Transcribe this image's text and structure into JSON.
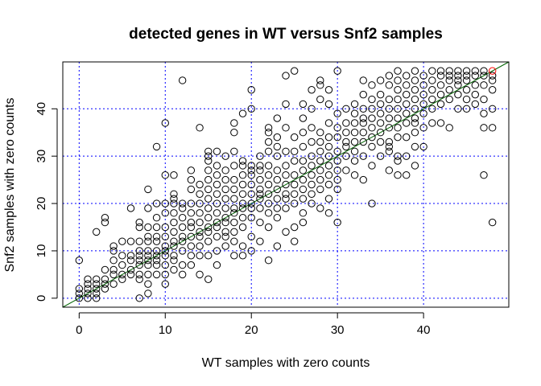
{
  "chart_data": {
    "type": "scatter",
    "title": "detected genes in WT versus Snf2 samples",
    "xlabel": "WT samples with zero counts",
    "ylabel": "Snf2 samples with zero counts",
    "xlim": [
      -1.9,
      49.9
    ],
    "ylim": [
      -1.9,
      49.9
    ],
    "xticks": [
      0,
      10,
      20,
      30,
      40
    ],
    "yticks": [
      0,
      10,
      20,
      30,
      40
    ],
    "grid": {
      "x": [
        0,
        10,
        20,
        30,
        40
      ],
      "y": [
        0,
        10,
        20,
        30,
        40
      ],
      "style": "dotted",
      "color": "#0000ff"
    },
    "reference_line": {
      "slope": 1,
      "intercept": 0,
      "color": "#006400"
    },
    "highlight_point": {
      "x": 48,
      "y": 48,
      "color": "#ff0000"
    },
    "points": [
      [
        0,
        0
      ],
      [
        0,
        1
      ],
      [
        0,
        2
      ],
      [
        0,
        8
      ],
      [
        1,
        0
      ],
      [
        1,
        1
      ],
      [
        1,
        2
      ],
      [
        1,
        3
      ],
      [
        1,
        4
      ],
      [
        2,
        0
      ],
      [
        2,
        1
      ],
      [
        2,
        2
      ],
      [
        2,
        3
      ],
      [
        2,
        4
      ],
      [
        2,
        14
      ],
      [
        3,
        2
      ],
      [
        3,
        3
      ],
      [
        3,
        4
      ],
      [
        3,
        6
      ],
      [
        3,
        16
      ],
      [
        3,
        17
      ],
      [
        4,
        3
      ],
      [
        4,
        5
      ],
      [
        4,
        6
      ],
      [
        4,
        8
      ],
      [
        4,
        10
      ],
      [
        4,
        11
      ],
      [
        5,
        4
      ],
      [
        5,
        5
      ],
      [
        5,
        7
      ],
      [
        5,
        9
      ],
      [
        5,
        12
      ],
      [
        6,
        5
      ],
      [
        6,
        6
      ],
      [
        6,
        8
      ],
      [
        6,
        9
      ],
      [
        6,
        12
      ],
      [
        6,
        19
      ],
      [
        7,
        0
      ],
      [
        7,
        4
      ],
      [
        7,
        5
      ],
      [
        7,
        7
      ],
      [
        7,
        8
      ],
      [
        7,
        9
      ],
      [
        7,
        10
      ],
      [
        7,
        12
      ],
      [
        7,
        15
      ],
      [
        7,
        16
      ],
      [
        8,
        1
      ],
      [
        8,
        3
      ],
      [
        8,
        5
      ],
      [
        8,
        7
      ],
      [
        8,
        8
      ],
      [
        8,
        9
      ],
      [
        8,
        10
      ],
      [
        8,
        12
      ],
      [
        8,
        13
      ],
      [
        8,
        15
      ],
      [
        8,
        19
      ],
      [
        8,
        23
      ],
      [
        9,
        5
      ],
      [
        9,
        7
      ],
      [
        9,
        8
      ],
      [
        9,
        9
      ],
      [
        9,
        10
      ],
      [
        9,
        12
      ],
      [
        9,
        13
      ],
      [
        9,
        15
      ],
      [
        9,
        17
      ],
      [
        9,
        20
      ],
      [
        9,
        32
      ],
      [
        10,
        3
      ],
      [
        10,
        5
      ],
      [
        10,
        7
      ],
      [
        10,
        9
      ],
      [
        10,
        10
      ],
      [
        10,
        11
      ],
      [
        10,
        13
      ],
      [
        10,
        15
      ],
      [
        10,
        18
      ],
      [
        10,
        20
      ],
      [
        10,
        26
      ],
      [
        10,
        37
      ],
      [
        11,
        6
      ],
      [
        11,
        8
      ],
      [
        11,
        9
      ],
      [
        11,
        11
      ],
      [
        11,
        12
      ],
      [
        11,
        14
      ],
      [
        11,
        16
      ],
      [
        11,
        18
      ],
      [
        11,
        20
      ],
      [
        11,
        21
      ],
      [
        11,
        22
      ],
      [
        11,
        26
      ],
      [
        12,
        5
      ],
      [
        12,
        7
      ],
      [
        12,
        10
      ],
      [
        12,
        12
      ],
      [
        12,
        13
      ],
      [
        12,
        15
      ],
      [
        12,
        17
      ],
      [
        12,
        19
      ],
      [
        12,
        20
      ],
      [
        12,
        46
      ],
      [
        13,
        7
      ],
      [
        13,
        9
      ],
      [
        13,
        11
      ],
      [
        13,
        13
      ],
      [
        13,
        15
      ],
      [
        13,
        16
      ],
      [
        13,
        18
      ],
      [
        13,
        20
      ],
      [
        13,
        23
      ],
      [
        13,
        25
      ],
      [
        13,
        27
      ],
      [
        14,
        5
      ],
      [
        14,
        9
      ],
      [
        14,
        11
      ],
      [
        14,
        13
      ],
      [
        14,
        14
      ],
      [
        14,
        16
      ],
      [
        14,
        18
      ],
      [
        14,
        20
      ],
      [
        14,
        22
      ],
      [
        14,
        24
      ],
      [
        14,
        36
      ],
      [
        15,
        4
      ],
      [
        15,
        9
      ],
      [
        15,
        12
      ],
      [
        15,
        14
      ],
      [
        15,
        15
      ],
      [
        15,
        17
      ],
      [
        15,
        19
      ],
      [
        15,
        21
      ],
      [
        15,
        23
      ],
      [
        15,
        25
      ],
      [
        15,
        27
      ],
      [
        15,
        29
      ],
      [
        15,
        30
      ],
      [
        15,
        31
      ],
      [
        16,
        7
      ],
      [
        16,
        10
      ],
      [
        16,
        13
      ],
      [
        16,
        15
      ],
      [
        16,
        16
      ],
      [
        16,
        18
      ],
      [
        16,
        20
      ],
      [
        16,
        22
      ],
      [
        16,
        24
      ],
      [
        16,
        26
      ],
      [
        16,
        28
      ],
      [
        16,
        31
      ],
      [
        17,
        11
      ],
      [
        17,
        13
      ],
      [
        17,
        14
      ],
      [
        17,
        16
      ],
      [
        17,
        17
      ],
      [
        17,
        19
      ],
      [
        17,
        21
      ],
      [
        17,
        23
      ],
      [
        17,
        25
      ],
      [
        17,
        27
      ],
      [
        17,
        30
      ],
      [
        18,
        9
      ],
      [
        18,
        12
      ],
      [
        18,
        14
      ],
      [
        18,
        16
      ],
      [
        18,
        18
      ],
      [
        18,
        19
      ],
      [
        18,
        21
      ],
      [
        18,
        23
      ],
      [
        18,
        25
      ],
      [
        18,
        28
      ],
      [
        18,
        31
      ],
      [
        18,
        35
      ],
      [
        18,
        37
      ],
      [
        19,
        9
      ],
      [
        19,
        11
      ],
      [
        19,
        15
      ],
      [
        19,
        17
      ],
      [
        19,
        19
      ],
      [
        19,
        20
      ],
      [
        19,
        22
      ],
      [
        19,
        24
      ],
      [
        19,
        26
      ],
      [
        19,
        28
      ],
      [
        19,
        29
      ],
      [
        19,
        39
      ],
      [
        20,
        10
      ],
      [
        20,
        13
      ],
      [
        20,
        17
      ],
      [
        20,
        19
      ],
      [
        20,
        20
      ],
      [
        20,
        22
      ],
      [
        20,
        24
      ],
      [
        20,
        26
      ],
      [
        20,
        27
      ],
      [
        20,
        28
      ],
      [
        20,
        40
      ],
      [
        20,
        44
      ],
      [
        21,
        12
      ],
      [
        21,
        16
      ],
      [
        21,
        19
      ],
      [
        21,
        21
      ],
      [
        21,
        22
      ],
      [
        21,
        23
      ],
      [
        21,
        25
      ],
      [
        21,
        27
      ],
      [
        21,
        28
      ],
      [
        21,
        30
      ],
      [
        22,
        8
      ],
      [
        22,
        15
      ],
      [
        22,
        18
      ],
      [
        22,
        20
      ],
      [
        22,
        22
      ],
      [
        22,
        24
      ],
      [
        22,
        26
      ],
      [
        22,
        28
      ],
      [
        22,
        31
      ],
      [
        22,
        33
      ],
      [
        22,
        35
      ],
      [
        22,
        36
      ],
      [
        23,
        11
      ],
      [
        23,
        17
      ],
      [
        23,
        19
      ],
      [
        23,
        21
      ],
      [
        23,
        23
      ],
      [
        23,
        25
      ],
      [
        23,
        27
      ],
      [
        23,
        30
      ],
      [
        23,
        32
      ],
      [
        23,
        34
      ],
      [
        23,
        38
      ],
      [
        24,
        14
      ],
      [
        24,
        19
      ],
      [
        24,
        21
      ],
      [
        24,
        22
      ],
      [
        24,
        24
      ],
      [
        24,
        26
      ],
      [
        24,
        28
      ],
      [
        24,
        31
      ],
      [
        24,
        36
      ],
      [
        24,
        41
      ],
      [
        24,
        47
      ],
      [
        25,
        12
      ],
      [
        25,
        15
      ],
      [
        25,
        20
      ],
      [
        25,
        22
      ],
      [
        25,
        24
      ],
      [
        25,
        26
      ],
      [
        25,
        29
      ],
      [
        25,
        31
      ],
      [
        25,
        34
      ],
      [
        25,
        48
      ],
      [
        26,
        16
      ],
      [
        26,
        18
      ],
      [
        26,
        21
      ],
      [
        26,
        23
      ],
      [
        26,
        25
      ],
      [
        26,
        27
      ],
      [
        26,
        29
      ],
      [
        26,
        32
      ],
      [
        26,
        35
      ],
      [
        26,
        38
      ],
      [
        26,
        41
      ],
      [
        27,
        20
      ],
      [
        27,
        22
      ],
      [
        27,
        24
      ],
      [
        27,
        26
      ],
      [
        27,
        28
      ],
      [
        27,
        30
      ],
      [
        27,
        33
      ],
      [
        27,
        36
      ],
      [
        27,
        40
      ],
      [
        27,
        44
      ],
      [
        28,
        19
      ],
      [
        28,
        23
      ],
      [
        28,
        25
      ],
      [
        28,
        27
      ],
      [
        28,
        29
      ],
      [
        28,
        31
      ],
      [
        28,
        33
      ],
      [
        28,
        35
      ],
      [
        28,
        42
      ],
      [
        28,
        45
      ],
      [
        28,
        46
      ],
      [
        29,
        18
      ],
      [
        29,
        21
      ],
      [
        29,
        24
      ],
      [
        29,
        26
      ],
      [
        29,
        28
      ],
      [
        29,
        30
      ],
      [
        29,
        32
      ],
      [
        29,
        34
      ],
      [
        29,
        37
      ],
      [
        29,
        41
      ],
      [
        29,
        44
      ],
      [
        30,
        16
      ],
      [
        30,
        23
      ],
      [
        30,
        25
      ],
      [
        30,
        27
      ],
      [
        30,
        29
      ],
      [
        30,
        31
      ],
      [
        30,
        34
      ],
      [
        30,
        36
      ],
      [
        30,
        39
      ],
      [
        30,
        48
      ],
      [
        31,
        27
      ],
      [
        31,
        30
      ],
      [
        31,
        32
      ],
      [
        31,
        33
      ],
      [
        31,
        35
      ],
      [
        31,
        37
      ],
      [
        31,
        40
      ],
      [
        32,
        26
      ],
      [
        32,
        29
      ],
      [
        32,
        31
      ],
      [
        32,
        33
      ],
      [
        32,
        35
      ],
      [
        32,
        37
      ],
      [
        32,
        39
      ],
      [
        32,
        41
      ],
      [
        33,
        25
      ],
      [
        33,
        30
      ],
      [
        33,
        33
      ],
      [
        33,
        35
      ],
      [
        33,
        37
      ],
      [
        33,
        38
      ],
      [
        33,
        40
      ],
      [
        33,
        43
      ],
      [
        33,
        46
      ],
      [
        34,
        20
      ],
      [
        34,
        28
      ],
      [
        34,
        32
      ],
      [
        34,
        34
      ],
      [
        34,
        36
      ],
      [
        34,
        38
      ],
      [
        34,
        40
      ],
      [
        34,
        42
      ],
      [
        34,
        45
      ],
      [
        35,
        30
      ],
      [
        35,
        33
      ],
      [
        35,
        35
      ],
      [
        35,
        37
      ],
      [
        35,
        39
      ],
      [
        35,
        41
      ],
      [
        35,
        43
      ],
      [
        35,
        46
      ],
      [
        36,
        27
      ],
      [
        36,
        31
      ],
      [
        36,
        32
      ],
      [
        36,
        33
      ],
      [
        36,
        36
      ],
      [
        36,
        38
      ],
      [
        36,
        40
      ],
      [
        36,
        42
      ],
      [
        36,
        45
      ],
      [
        36,
        47
      ],
      [
        37,
        26
      ],
      [
        37,
        29
      ],
      [
        37,
        30
      ],
      [
        37,
        34
      ],
      [
        37,
        36
      ],
      [
        37,
        38
      ],
      [
        37,
        40
      ],
      [
        37,
        42
      ],
      [
        37,
        44
      ],
      [
        37,
        46
      ],
      [
        37,
        48
      ],
      [
        38,
        26
      ],
      [
        38,
        30
      ],
      [
        38,
        34
      ],
      [
        38,
        37
      ],
      [
        38,
        39
      ],
      [
        38,
        41
      ],
      [
        38,
        43
      ],
      [
        38,
        45
      ],
      [
        38,
        47
      ],
      [
        39,
        28
      ],
      [
        39,
        32
      ],
      [
        39,
        35
      ],
      [
        39,
        37
      ],
      [
        39,
        38
      ],
      [
        39,
        40
      ],
      [
        39,
        42
      ],
      [
        39,
        44
      ],
      [
        39,
        46
      ],
      [
        39,
        48
      ],
      [
        40,
        32
      ],
      [
        40,
        36
      ],
      [
        40,
        39
      ],
      [
        40,
        41
      ],
      [
        40,
        43
      ],
      [
        40,
        45
      ],
      [
        40,
        47
      ],
      [
        41,
        37
      ],
      [
        41,
        40
      ],
      [
        41,
        42
      ],
      [
        41,
        44
      ],
      [
        41,
        46
      ],
      [
        41,
        48
      ],
      [
        42,
        37
      ],
      [
        42,
        41
      ],
      [
        42,
        43
      ],
      [
        42,
        45
      ],
      [
        42,
        47
      ],
      [
        42,
        48
      ],
      [
        43,
        36
      ],
      [
        43,
        42
      ],
      [
        43,
        44
      ],
      [
        43,
        46
      ],
      [
        43,
        47
      ],
      [
        43,
        48
      ],
      [
        44,
        40
      ],
      [
        44,
        43
      ],
      [
        44,
        45
      ],
      [
        44,
        46
      ],
      [
        44,
        47
      ],
      [
        44,
        48
      ],
      [
        45,
        40
      ],
      [
        45,
        42
      ],
      [
        45,
        44
      ],
      [
        45,
        46
      ],
      [
        45,
        47
      ],
      [
        45,
        48
      ],
      [
        46,
        41
      ],
      [
        46,
        43
      ],
      [
        46,
        45
      ],
      [
        46,
        47
      ],
      [
        46,
        48
      ],
      [
        47,
        26
      ],
      [
        47,
        36
      ],
      [
        47,
        39
      ],
      [
        47,
        42
      ],
      [
        47,
        45
      ],
      [
        47,
        47
      ],
      [
        47,
        48
      ],
      [
        48,
        16
      ],
      [
        48,
        36
      ],
      [
        48,
        40
      ],
      [
        48,
        44
      ],
      [
        48,
        46
      ],
      [
        48,
        47
      ]
    ]
  }
}
